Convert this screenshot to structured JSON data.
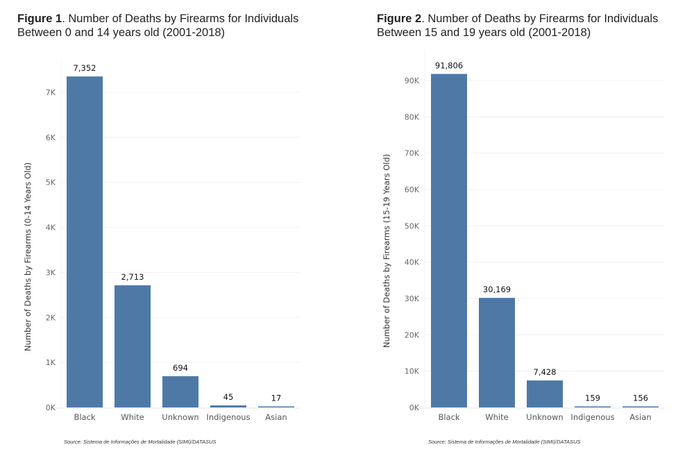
{
  "chart_data": [
    {
      "type": "bar",
      "figure_label": "Figure 1",
      "title": ". Number of Deaths by Firearms for Individuals Between 0 and 14 years old (2001-2018)",
      "title_line1": ". Number of Deaths by Firearms for Individuals",
      "title_line2": "Between 0 and 14 years old (2001-2018)",
      "categories": [
        "Black",
        "White",
        "Unknown",
        "Indigenous",
        "Asian"
      ],
      "values": [
        7352,
        2713,
        694,
        45,
        17
      ],
      "data_labels": [
        "7,352",
        "2,713",
        "694",
        "45",
        "17"
      ],
      "ylabel": "Number of Deaths by Firearms (0-14 Years Old)",
      "xlabel": "",
      "ylim": [
        0,
        7000
      ],
      "yticks": [
        0,
        1000,
        2000,
        3000,
        4000,
        5000,
        6000,
        7000
      ],
      "ytick_labels": [
        "0K",
        "1K",
        "2K",
        "3K",
        "4K",
        "5K",
        "6K",
        "7K"
      ],
      "grid": true,
      "color": "#4e79a7",
      "source": "Source: Sistema de Informações de Mortalidade (SIMI)/DATASUS"
    },
    {
      "type": "bar",
      "figure_label": "Figure 2",
      "title": ". Number of Deaths by Firearms for Individuals Between 15 and 19 years old (2001-2018)",
      "title_line1": ". Number of Deaths by Firearms for Individuals",
      "title_line2": "Between 15 and 19 years old (2001-2018)",
      "categories": [
        "Black",
        "White",
        "Unknown",
        "Indigenous",
        "Asian"
      ],
      "values": [
        91806,
        30169,
        7428,
        159,
        156
      ],
      "data_labels": [
        "91,806",
        "30,169",
        "7,428",
        "159",
        "156"
      ],
      "ylabel": "Number of Deaths by Firearms (15-19 Years Old)",
      "xlabel": "",
      "ylim": [
        0,
        90000
      ],
      "yticks": [
        0,
        10000,
        20000,
        30000,
        40000,
        50000,
        60000,
        70000,
        80000,
        90000
      ],
      "ytick_labels": [
        "0K",
        "10K",
        "20K",
        "30K",
        "40K",
        "50K",
        "60K",
        "70K",
        "80K",
        "90K"
      ],
      "grid": true,
      "color": "#4e79a7",
      "source": "Source: Sistema de Informações de Mortalidade (SIMI)/DATASUS"
    }
  ]
}
